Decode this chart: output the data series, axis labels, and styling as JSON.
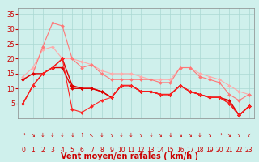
{
  "title": "Vent moyen/en rafales ( km/h )",
  "background_color": "#cff0ec",
  "grid_color": "#aad8d3",
  "x_ticks": [
    0,
    1,
    2,
    3,
    4,
    5,
    6,
    7,
    8,
    9,
    10,
    11,
    12,
    13,
    14,
    15,
    16,
    17,
    18,
    19,
    20,
    21,
    22,
    23
  ],
  "ylim": [
    0,
    37
  ],
  "yticks": [
    5,
    10,
    15,
    20,
    25,
    30,
    35
  ],
  "wind_arrows": [
    "→",
    "↘",
    "↓",
    "↓",
    "↓",
    "↓",
    "↑",
    "↖",
    "↓",
    "↘",
    "↓",
    "↓",
    "↘",
    "↓",
    "↘",
    "↓",
    "↘",
    "↘",
    "↓",
    "↘",
    "→",
    "↘",
    "↘",
    "↙"
  ],
  "series": [
    {
      "color": "#ffaaaa",
      "linewidth": 0.8,
      "marker": "D",
      "markersize": 2.0,
      "data": [
        14,
        17,
        23,
        24,
        20,
        20,
        19,
        18,
        16,
        15,
        15,
        15,
        14,
        13,
        13,
        13,
        17,
        17,
        15,
        14,
        13,
        11,
        9,
        8
      ]
    },
    {
      "color": "#ff7777",
      "linewidth": 0.8,
      "marker": "D",
      "markersize": 2.0,
      "data": [
        13,
        15,
        24,
        32,
        31,
        20,
        17,
        18,
        15,
        13,
        13,
        13,
        13,
        13,
        12,
        12,
        17,
        17,
        14,
        13,
        12,
        8,
        6,
        8
      ]
    },
    {
      "color": "#dd0000",
      "linewidth": 1.0,
      "marker": "D",
      "markersize": 2.0,
      "data": [
        5,
        11,
        15,
        17,
        20,
        11,
        10,
        10,
        9,
        7,
        11,
        11,
        9,
        9,
        8,
        8,
        11,
        9,
        8,
        7,
        7,
        5,
        1,
        4
      ]
    },
    {
      "color": "#dd0000",
      "linewidth": 1.0,
      "marker": "D",
      "markersize": 2.0,
      "data": [
        13,
        15,
        15,
        17,
        17,
        10,
        10,
        10,
        9,
        7,
        11,
        11,
        9,
        9,
        8,
        8,
        11,
        9,
        8,
        7,
        7,
        6,
        1,
        4
      ]
    },
    {
      "color": "#ff2222",
      "linewidth": 0.8,
      "marker": "D",
      "markersize": 2.0,
      "data": [
        5,
        11,
        15,
        17,
        20,
        3,
        2,
        4,
        6,
        7,
        11,
        11,
        9,
        9,
        8,
        8,
        11,
        9,
        8,
        7,
        7,
        5,
        1,
        4
      ]
    }
  ],
  "tick_color": "#cc0000",
  "label_color": "#cc0000",
  "title_fontsize": 7,
  "tick_fontsize": 5.5,
  "arrow_fontsize": 5.0
}
